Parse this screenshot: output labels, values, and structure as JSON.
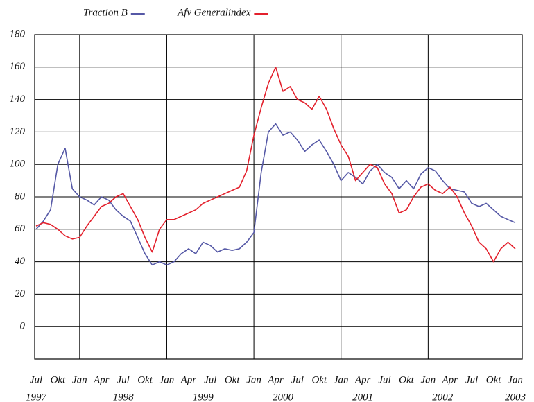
{
  "chart_data": {
    "type": "line",
    "x": [
      "1997-07",
      "1997-08",
      "1997-09",
      "1997-10",
      "1997-11",
      "1997-12",
      "1998-01",
      "1998-02",
      "1998-03",
      "1998-04",
      "1998-05",
      "1998-06",
      "1998-07",
      "1998-08",
      "1998-09",
      "1998-10",
      "1998-11",
      "1998-12",
      "1999-01",
      "1999-02",
      "1999-03",
      "1999-04",
      "1999-05",
      "1999-06",
      "1999-07",
      "1999-08",
      "1999-09",
      "1999-10",
      "1999-11",
      "1999-12",
      "2000-01",
      "2000-02",
      "2000-03",
      "2000-04",
      "2000-05",
      "2000-06",
      "2000-07",
      "2000-08",
      "2000-09",
      "2000-10",
      "2000-11",
      "2000-12",
      "2001-01",
      "2001-02",
      "2001-03",
      "2001-04",
      "2001-05",
      "2001-06",
      "2001-07",
      "2001-08",
      "2001-09",
      "2001-10",
      "2001-11",
      "2001-12",
      "2002-01",
      "2002-02",
      "2002-03",
      "2002-04",
      "2002-05",
      "2002-06",
      "2002-07",
      "2002-08",
      "2002-09",
      "2002-10",
      "2002-11",
      "2002-12",
      "2003-01"
    ],
    "series": [
      {
        "name": "Traction B",
        "color": "#5558a6",
        "values": [
          60,
          65,
          72,
          100,
          110,
          85,
          80,
          78,
          75,
          80,
          78,
          72,
          68,
          65,
          55,
          45,
          38,
          40,
          38,
          40,
          45,
          48,
          45,
          52,
          50,
          46,
          48,
          47,
          48,
          52,
          58,
          95,
          120,
          125,
          118,
          120,
          115,
          108,
          112,
          115,
          108,
          100,
          90,
          95,
          92,
          88,
          96,
          100,
          95,
          92,
          85,
          90,
          85,
          94,
          98,
          96,
          90,
          85,
          84,
          83,
          76,
          74,
          76,
          72,
          68,
          66,
          64
        ]
      },
      {
        "name": "Afv Generalindex",
        "color": "#e3202c",
        "values": [
          62,
          64,
          63,
          60,
          56,
          54,
          55,
          62,
          68,
          74,
          76,
          80,
          82,
          74,
          66,
          55,
          46,
          60,
          66,
          66,
          68,
          70,
          72,
          76,
          78,
          80,
          82,
          84,
          86,
          96,
          118,
          135,
          150,
          160,
          145,
          148,
          140,
          138,
          134,
          142,
          134,
          122,
          112,
          105,
          90,
          95,
          100,
          98,
          88,
          82,
          70,
          72,
          80,
          86,
          88,
          84,
          82,
          86,
          80,
          70,
          62,
          52,
          48,
          40,
          48,
          52,
          48
        ]
      }
    ],
    "ylim": [
      -20,
      180
    ],
    "yticks": [
      0,
      20,
      40,
      60,
      80,
      100,
      120,
      140,
      160,
      180
    ],
    "grid": true,
    "xticks": [
      {
        "value": "1997-07",
        "label": "Jul"
      },
      {
        "value": "1997-10",
        "label": "Okt"
      },
      {
        "value": "1998-01",
        "label": "Jan"
      },
      {
        "value": "1998-04",
        "label": "Apr"
      },
      {
        "value": "1998-07",
        "label": "Jul"
      },
      {
        "value": "1998-10",
        "label": "Okt"
      },
      {
        "value": "1999-01",
        "label": "Jan"
      },
      {
        "value": "1999-04",
        "label": "Apr"
      },
      {
        "value": "1999-07",
        "label": "Jul"
      },
      {
        "value": "1999-10",
        "label": "Okt"
      },
      {
        "value": "2000-01",
        "label": "Jan"
      },
      {
        "value": "2000-04",
        "label": "Apr"
      },
      {
        "value": "2000-07",
        "label": "Jul"
      },
      {
        "value": "2000-10",
        "label": "Okt"
      },
      {
        "value": "2001-01",
        "label": "Jan"
      },
      {
        "value": "2001-04",
        "label": "Apr"
      },
      {
        "value": "2001-07",
        "label": "Jul"
      },
      {
        "value": "2001-10",
        "label": "Okt"
      },
      {
        "value": "2002-01",
        "label": "Jan"
      },
      {
        "value": "2002-04",
        "label": "Apr"
      },
      {
        "value": "2002-07",
        "label": "Jul"
      },
      {
        "value": "2002-10",
        "label": "Okt"
      },
      {
        "value": "2003-01",
        "label": "Jan"
      }
    ],
    "xtick_years": [
      {
        "value": "1997-07",
        "label": "1997"
      },
      {
        "value": "1998-07",
        "label": "1998"
      },
      {
        "value": "1999-06",
        "label": "1999"
      },
      {
        "value": "2000-05",
        "label": "2000"
      },
      {
        "value": "2001-04",
        "label": "2001"
      },
      {
        "value": "2002-03",
        "label": "2002"
      },
      {
        "value": "2003-01",
        "label": "2003"
      }
    ]
  }
}
